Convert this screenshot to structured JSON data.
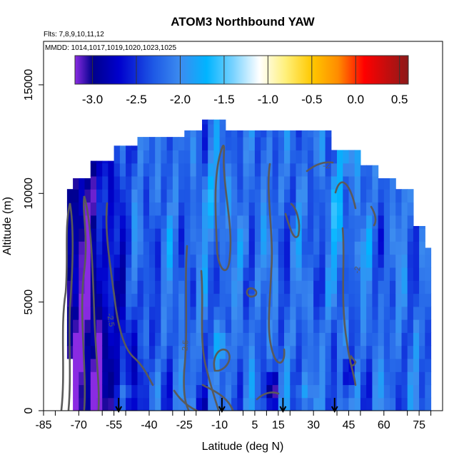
{
  "chart_data": {
    "type": "heatmap",
    "title": "ATOM3 Northbound YAW",
    "subtitle_flights": "Flts: 7,8,9,10,11,12",
    "subtitle_dates": "MMDD: 1014,1017,1019,1020,1023,1025",
    "xlabel": "Latitude (deg N)",
    "ylabel": "Altitude (m)",
    "xlim": [
      -85,
      85
    ],
    "ylim": [
      0,
      17000
    ],
    "x_ticks": [
      -85,
      -70,
      -55,
      -40,
      -25,
      -10,
      5,
      15,
      30,
      45,
      60,
      75
    ],
    "x_tick_labels": [
      "-85",
      "-70",
      "-55",
      "-40",
      "-25",
      "-10",
      "5",
      "15",
      "30",
      "45",
      "60",
      "75"
    ],
    "y_ticks": [
      0,
      5000,
      10000,
      15000
    ],
    "y_tick_labels": [
      "0",
      "5000",
      "10000",
      "15000"
    ],
    "colorbar": {
      "range": [
        -3.2,
        0.6
      ],
      "ticks": [
        -3.0,
        -2.5,
        -2.0,
        -1.5,
        -1.0,
        -0.5,
        0.0,
        0.5
      ],
      "tick_labels": [
        "-3.0",
        "-2.5",
        "-2.0",
        "-1.5",
        "-1.0",
        "-0.5",
        "0.0",
        "0.5"
      ]
    },
    "contour_labels": [
      "-2",
      "-2.5",
      "-2.5",
      "-2"
    ],
    "profile_marker_latitudes": [
      -53,
      -9,
      17,
      39
    ],
    "colors": {
      "c_m32": "#8a2be2",
      "c_m30": "#00008b",
      "c_m27": "#0000cd",
      "c_m23": "#1e5ae6",
      "c_m20": "#3c8cf0",
      "c_m17": "#00b4ff",
      "c_m14": "#78d2ff",
      "c_m11": "#ffffff",
      "c_m08": "#fff07a",
      "c_m05": "#ffc800",
      "c_m02": "#ff8c00",
      "c_p01": "#ff0000",
      "c_p06": "#8b1a1a",
      "contour": "#5a5a5a"
    }
  }
}
